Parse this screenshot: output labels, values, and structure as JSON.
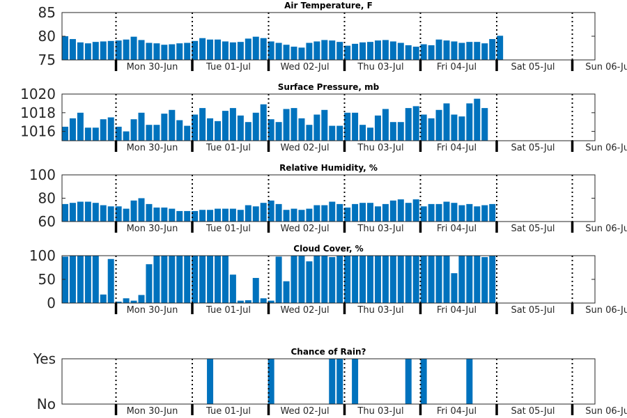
{
  "bar_color": "#0072bd",
  "chart_data": [
    {
      "type": "bar",
      "title": "Air Temperature, F",
      "ylim": [
        75,
        85
      ],
      "yticks": [
        75,
        80,
        85
      ],
      "ytick_labels": [
        "75",
        "80",
        "85"
      ],
      "xtick_labels": [
        "Mon 30-Jun",
        "Tue 01-Jul",
        "Wed 02-Jul",
        "Thu 03-Jul",
        "Fri 04-Jul",
        "Sat 05-Jul",
        "Sun 06-Jul"
      ],
      "values": [
        80.0,
        79.4,
        78.7,
        78.5,
        78.8,
        78.9,
        79.0,
        79.1,
        79.3,
        79.9,
        79.2,
        78.6,
        78.5,
        78.2,
        78.3,
        78.5,
        78.6,
        79.0,
        79.6,
        79.3,
        79.3,
        78.9,
        78.7,
        78.8,
        79.5,
        79.9,
        79.6,
        78.9,
        78.6,
        78.2,
        77.8,
        77.6,
        78.6,
        78.9,
        79.2,
        79.1,
        78.8,
        78.0,
        78.4,
        78.7,
        78.8,
        79.1,
        79.2,
        78.9,
        78.6,
        78.1,
        77.8,
        78.3,
        78.1,
        79.3,
        79.1,
        78.9,
        78.6,
        78.8,
        78.8,
        78.5,
        79.4,
        80.1
      ]
    },
    {
      "type": "bar",
      "title": "Surface Pressure, mb",
      "ylim": [
        1015,
        1020
      ],
      "yticks": [
        1016,
        1018,
        1020
      ],
      "ytick_labels": [
        "1016",
        "1018",
        "1020"
      ],
      "xtick_labels": [
        "Mon 30-Jun",
        "Tue 01-Jul",
        "Wed 02-Jul",
        "Thu 03-Jul",
        "Fri 04-Jul",
        "Sat 05-Jul",
        "Sun 06-Jul"
      ],
      "values": [
        1016.5,
        1017.4,
        1018.0,
        1016.4,
        1016.4,
        1017.3,
        1017.5,
        1016.5,
        1016.0,
        1017.3,
        1018.0,
        1016.7,
        1016.7,
        1017.9,
        1018.3,
        1017.2,
        1016.6,
        1017.8,
        1018.5,
        1017.4,
        1017.1,
        1018.2,
        1018.5,
        1017.7,
        1017.0,
        1018.0,
        1018.9,
        1017.3,
        1017.0,
        1018.4,
        1018.5,
        1017.4,
        1016.7,
        1017.8,
        1018.3,
        1016.6,
        1016.6,
        1018.0,
        1018.0,
        1016.7,
        1016.4,
        1017.7,
        1018.4,
        1017.0,
        1017.0,
        1018.5,
        1018.7,
        1017.8,
        1017.4,
        1018.3,
        1019.0,
        1017.8,
        1017.6,
        1019.0,
        1019.5,
        1018.5
      ]
    },
    {
      "type": "bar",
      "title": "Relative Humidity, %",
      "ylim": [
        60,
        100
      ],
      "yticks": [
        60,
        80,
        100
      ],
      "ytick_labels": [
        "60",
        "80",
        "100"
      ],
      "xtick_labels": [
        "Mon 30-Jun",
        "Tue 01-Jul",
        "Wed 02-Jul",
        "Thu 03-Jul",
        "Fri 04-Jul",
        "Sat 05-Jul",
        "Sun 06-Jul"
      ],
      "values": [
        75,
        76,
        77,
        77,
        76,
        74,
        73,
        73,
        71,
        78,
        80,
        75,
        72,
        72,
        71,
        69,
        69,
        69,
        70,
        70,
        71,
        71,
        71,
        70,
        74,
        73,
        76,
        78,
        75,
        70,
        71,
        70,
        71,
        74,
        74,
        77,
        75,
        72,
        75,
        76,
        76,
        73,
        75,
        78,
        79,
        76,
        79,
        73,
        75,
        75,
        77,
        76,
        74,
        75,
        73,
        74,
        75
      ]
    },
    {
      "type": "bar",
      "title": "Cloud Cover, %",
      "ylim": [
        0,
        100
      ],
      "yticks": [
        0,
        50,
        100
      ],
      "ytick_labels": [
        "0",
        "50",
        "100"
      ],
      "xtick_labels": [
        "Mon 30-Jun",
        "Tue 01-Jul",
        "Wed 02-Jul",
        "Thu 03-Jul",
        "Fri 04-Jul",
        "Sat 05-Jul",
        "Sun 06-Jul"
      ],
      "values": [
        98,
        100,
        100,
        100,
        100,
        18,
        93,
        3,
        10,
        5,
        17,
        82,
        100,
        100,
        100,
        100,
        100,
        100,
        100,
        100,
        100,
        100,
        60,
        5,
        6,
        53,
        10,
        5,
        98,
        46,
        100,
        100,
        88,
        100,
        100,
        97,
        100,
        100,
        100,
        100,
        100,
        100,
        100,
        100,
        100,
        100,
        100,
        100,
        100,
        100,
        100,
        63,
        100,
        100,
        100,
        97,
        100
      ]
    },
    {
      "type": "bar",
      "title": "Chance of Rain?",
      "ylim": [
        0,
        1
      ],
      "yticks": [
        0,
        1
      ],
      "ytick_labels": [
        "No",
        "Yes"
      ],
      "xtick_labels": [
        "Mon 30-Jun",
        "Tue 01-Jul",
        "Wed 02-Jul",
        "Thu 03-Jul",
        "Fri 04-Jul",
        "Sat 05-Jul",
        "Sun 06-Jul"
      ],
      "values": [
        0,
        0,
        0,
        0,
        0,
        0,
        0,
        0,
        0,
        0,
        0,
        0,
        0,
        0,
        0,
        0,
        0,
        0,
        0,
        1,
        0,
        0,
        0,
        0,
        0,
        0,
        0,
        1,
        0,
        0,
        0,
        0,
        0,
        0,
        0,
        1,
        1,
        0,
        1,
        0,
        0,
        0,
        0,
        0,
        0,
        1,
        0,
        1,
        0,
        0,
        0,
        0,
        0,
        1,
        0,
        0,
        0
      ]
    }
  ]
}
